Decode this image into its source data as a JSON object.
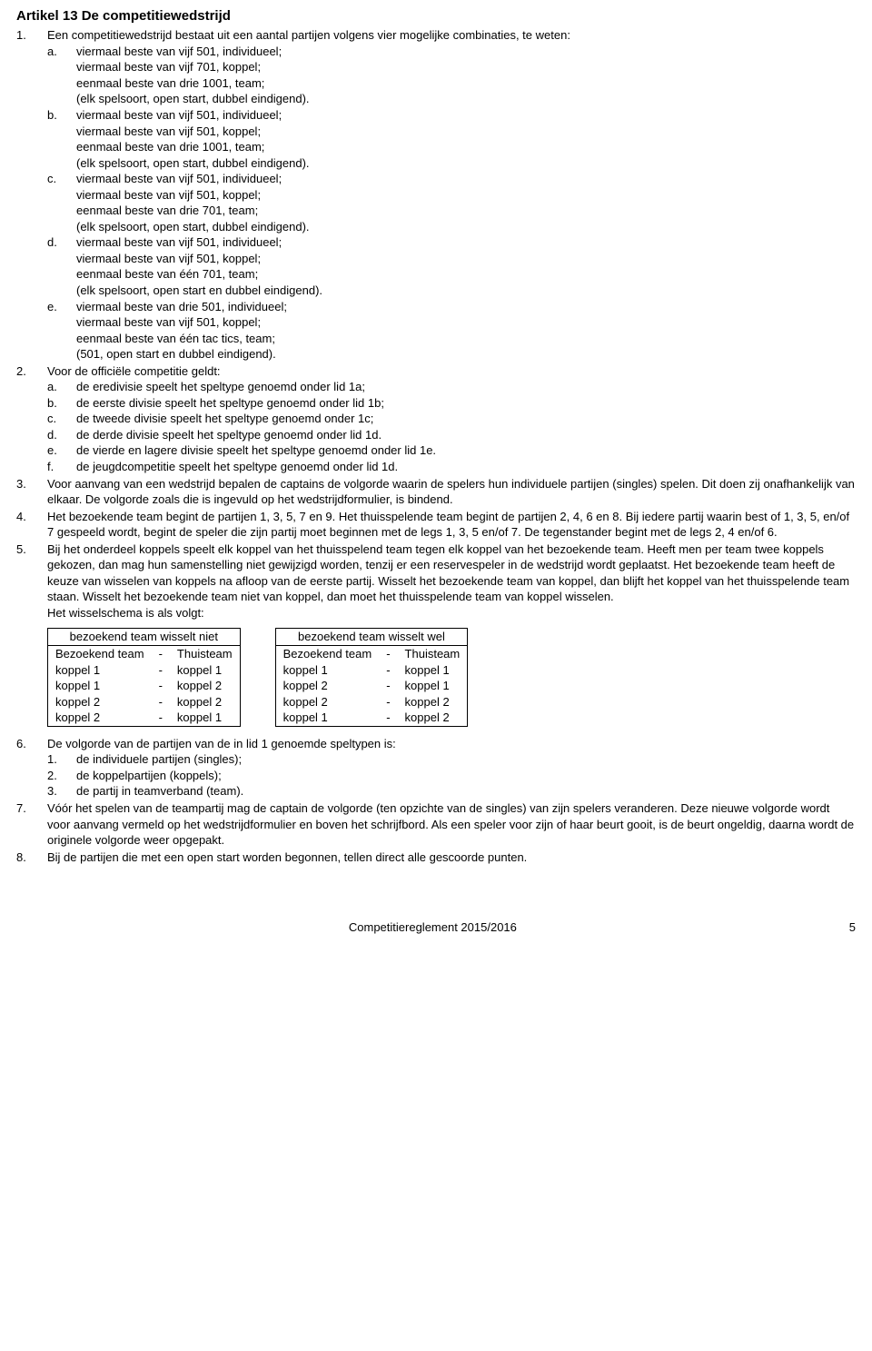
{
  "title": "Artikel 13 De competitiewedstrijd",
  "items": [
    {
      "marker": "1.",
      "intro": "Een competitiewedstrijd bestaat uit een aantal partijen volgens vier mogelijke combinaties, te weten:",
      "subs": [
        {
          "marker": "a.",
          "lines": [
            "viermaal beste van vijf 501, individueel;",
            "viermaal beste van vijf 701, koppel;",
            "eenmaal beste van drie 1001, team;",
            "(elk spelsoort, open start, dubbel eindigend)."
          ]
        },
        {
          "marker": "b.",
          "lines": [
            "viermaal beste van vijf 501, individueel;",
            "viermaal beste van vijf 501, koppel;",
            "eenmaal beste van drie 1001, team;",
            "(elk spelsoort, open start, dubbel eindigend)."
          ]
        },
        {
          "marker": "c.",
          "lines": [
            "viermaal beste van vijf 501, individueel;",
            "viermaal beste van vijf 501, koppel;",
            "eenmaal beste van drie 701, team;",
            "(elk spelsoort, open start, dubbel eindigend)."
          ]
        },
        {
          "marker": "d.",
          "lines": [
            "viermaal beste van vijf 501, individueel;",
            "viermaal beste van vijf 501, koppel;",
            "eenmaal beste van één 701, team;",
            "(elk spelsoort, open start en dubbel eindigend)."
          ]
        },
        {
          "marker": "e.",
          "lines": [
            "viermaal beste van drie 501, individueel;",
            "viermaal beste van vijf 501, koppel;",
            "eenmaal beste van één tac tics, team;",
            "(501, open start en dubbel eindigend)."
          ]
        }
      ]
    },
    {
      "marker": "2.",
      "intro": "Voor de officiële competitie geldt:",
      "subs": [
        {
          "marker": "a.",
          "lines": [
            "de eredivisie speelt het speltype genoemd onder lid 1a;"
          ]
        },
        {
          "marker": "b.",
          "lines": [
            "de eerste divisie speelt het speltype genoemd onder lid 1b;"
          ]
        },
        {
          "marker": "c.",
          "lines": [
            "de tweede divisie speelt het speltype genoemd onder 1c;"
          ]
        },
        {
          "marker": "d.",
          "lines": [
            "de derde divisie speelt het speltype genoemd onder lid 1d."
          ]
        },
        {
          "marker": "e.",
          "lines": [
            "de vierde en lagere divisie speelt het speltype genoemd onder lid 1e."
          ]
        },
        {
          "marker": "f.",
          "lines": [
            "de jeugdcompetitie speelt het speltype genoemd onder lid 1d."
          ]
        }
      ]
    },
    {
      "marker": "3.",
      "intro": "Voor aanvang van een wedstrijd bepalen de captains de volgorde waarin de spelers hun individuele partijen (singles) spelen. Dit doen zij onafhankelijk van elkaar. De volgorde zoals die is ingevuld op het wedstrijdformulier, is bindend."
    },
    {
      "marker": "4.",
      "intro": "Het bezoekende team begint de partijen 1, 3, 5, 7 en 9. Het thuisspelende team begint de partijen 2, 4, 6 en 8. Bij iedere partij waarin best of 1, 3, 5, en/of 7 gespeeld wordt, begint de speler die zijn partij moet beginnen met de legs 1, 3, 5 en/of 7. De tegenstander begint met de legs 2, 4 en/of 6."
    },
    {
      "marker": "5.",
      "intro": "Bij het onderdeel koppels speelt elk koppel van het thuisspelend team tegen elk koppel van het bezoekende team. Heeft men per team twee koppels gekozen, dan mag hun samenstelling niet gewijzigd worden, tenzij er een reservespeler in de wedstrijd wordt geplaatst. Het bezoekende team heeft de keuze van wisselen van koppels na afloop van de eerste partij. Wisselt het bezoekende team van koppel, dan blijft het koppel van het thuisspelende team staan. Wisselt het bezoekende team niet van koppel, dan moet het thuisspelende team van koppel wisselen.",
      "intro2": "Het wisselschema is als volgt:"
    }
  ],
  "tableA": {
    "heading": "bezoekend team wisselt niet",
    "header": [
      "Bezoekend team",
      "-",
      "Thuisteam"
    ],
    "rows": [
      [
        "koppel 1",
        "-",
        "koppel 1"
      ],
      [
        "koppel 1",
        "-",
        "koppel 2"
      ],
      [
        "koppel 2",
        "-",
        "koppel 2"
      ],
      [
        "koppel 2",
        "-",
        "koppel 1"
      ]
    ]
  },
  "tableB": {
    "heading": "bezoekend team wisselt wel",
    "header": [
      "Bezoekend team",
      "-",
      "Thuisteam"
    ],
    "rows": [
      [
        "koppel 1",
        "-",
        "koppel 1"
      ],
      [
        "koppel 2",
        "-",
        "koppel 1"
      ],
      [
        "koppel 2",
        "-",
        "koppel 2"
      ],
      [
        "koppel 1",
        "-",
        "koppel 2"
      ]
    ]
  },
  "items2": [
    {
      "marker": "6.",
      "intro": "De volgorde van de partijen van de in lid 1 genoemde speltypen is:",
      "subs": [
        {
          "marker": "1.",
          "lines": [
            "de individuele partijen (singles);"
          ]
        },
        {
          "marker": "2.",
          "lines": [
            "de koppelpartijen (koppels);"
          ]
        },
        {
          "marker": "3.",
          "lines": [
            "de partij in teamverband (team)."
          ]
        }
      ]
    },
    {
      "marker": "7.",
      "intro": "Vóór het spelen van de teampartij mag de captain de volgorde (ten opzichte van de singles) van zijn spelers veranderen. Deze nieuwe volgorde wordt voor aanvang vermeld op het wedstrijdformulier en boven het schrijfbord. Als een speler voor zijn of haar beurt gooit, is de beurt ongeldig, daarna wordt de originele volgorde weer opgepakt."
    },
    {
      "marker": "8.",
      "intro": "Bij de partijen die met een open start worden begonnen, tellen direct alle gescoorde punten."
    }
  ],
  "footer": {
    "text": "Competitiereglement 2015/2016",
    "page": "5"
  }
}
